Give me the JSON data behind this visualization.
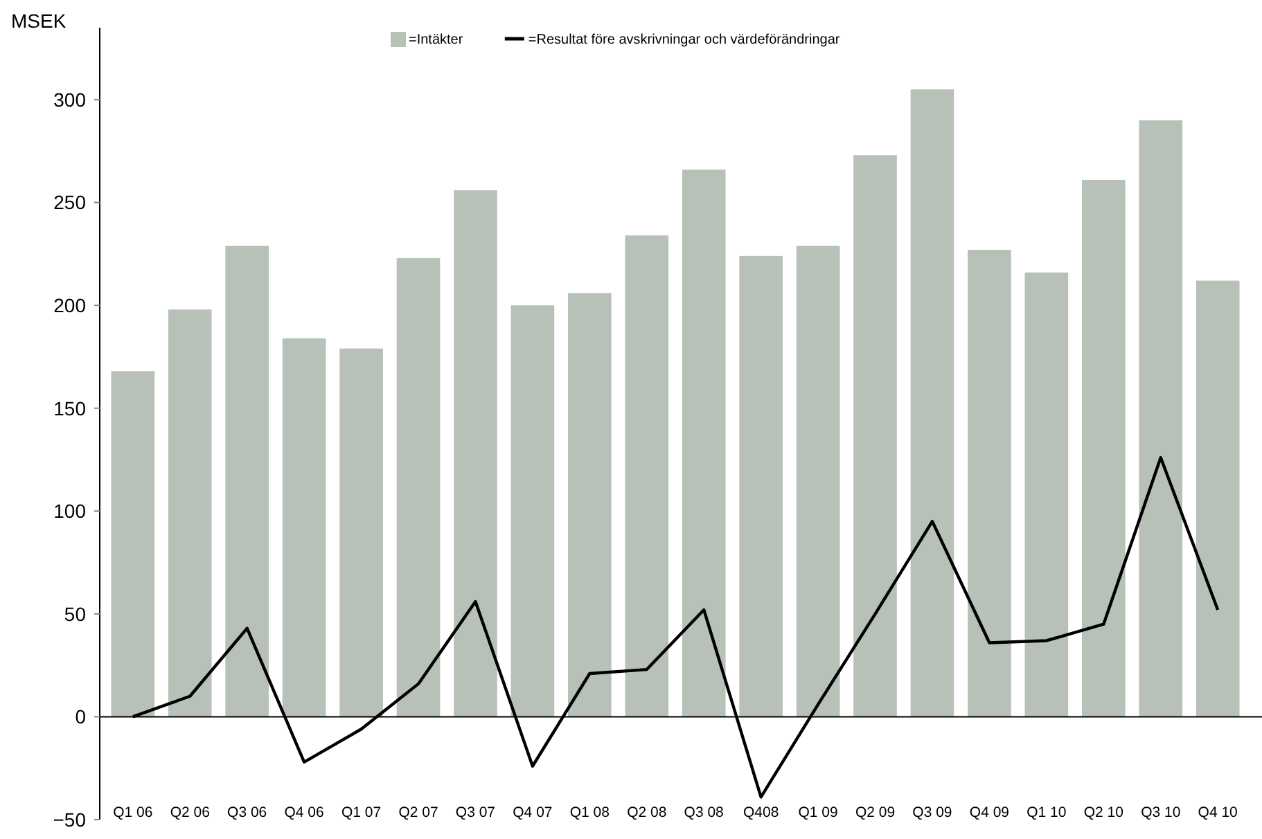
{
  "chart_data": {
    "type": "bar",
    "ylabel": "MSEK",
    "categories": [
      "Q1 06",
      "Q2 06",
      "Q3 06",
      "Q4 06",
      "Q1 07",
      "Q2 07",
      "Q3 07",
      "Q4 07",
      "Q1 08",
      "Q2 08",
      "Q3 08",
      "Q408",
      "Q1 09",
      "Q2 09",
      "Q3 09",
      "Q4 09",
      "Q1 10",
      "Q2 10",
      "Q3 10",
      "Q4 10"
    ],
    "series": [
      {
        "name": "=Intäkter",
        "color": "#b7c1b8",
        "values": [
          168,
          198,
          229,
          184,
          179,
          223,
          256,
          200,
          206,
          234,
          266,
          224,
          229,
          273,
          305,
          227,
          216,
          261,
          290,
          212
        ]
      },
      {
        "name": "=Resultat före avskrivningar och värdeförändringar",
        "type": "line",
        "color": "#000000",
        "values": [
          0,
          10,
          43,
          -22,
          -6,
          16,
          56,
          -24,
          21,
          23,
          52,
          -39,
          6,
          50,
          95,
          36,
          37,
          45,
          126,
          52
        ]
      }
    ],
    "ylim": [
      -50,
      335
    ],
    "yticks": [
      -50,
      0,
      50,
      100,
      150,
      200,
      250,
      300
    ],
    "legend": "top",
    "marker": "none",
    "line_style": "solid"
  }
}
